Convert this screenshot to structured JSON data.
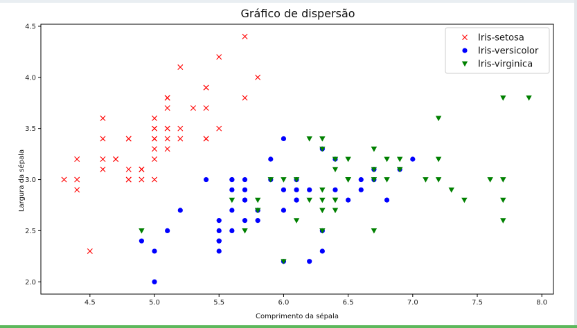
{
  "chart_data": {
    "type": "scatter",
    "title": "Gráfico de dispersão",
    "xlabel": "Comprimento da sépala",
    "ylabel": "Largura da sépala",
    "xlim": [
      4.12,
      8.09
    ],
    "ylim": [
      1.88,
      4.52
    ],
    "xticks": [
      "4.5",
      "5.0",
      "5.5",
      "6.0",
      "6.5",
      "7.0",
      "7.5",
      "8.0"
    ],
    "yticks": [
      "2.0",
      "2.5",
      "3.0",
      "3.5",
      "4.0",
      "4.5"
    ],
    "grid": false,
    "legend_position": "top-right",
    "series": [
      {
        "name": "Iris-setosa",
        "marker": "x",
        "color": "#ff0000",
        "x": [
          5.1,
          4.9,
          4.7,
          4.6,
          5.0,
          5.4,
          4.6,
          5.0,
          4.4,
          4.9,
          5.4,
          4.8,
          4.8,
          4.3,
          5.8,
          5.7,
          5.4,
          5.1,
          5.7,
          5.1,
          5.4,
          5.1,
          4.6,
          5.1,
          4.8,
          5.0,
          5.0,
          5.2,
          5.2,
          4.7,
          4.8,
          5.4,
          5.2,
          5.5,
          4.9,
          5.0,
          5.5,
          4.9,
          4.4,
          5.1,
          5.0,
          4.5,
          4.4,
          5.0,
          5.1,
          4.8,
          5.1,
          4.6,
          5.3,
          5.0
        ],
        "y": [
          3.5,
          3.0,
          3.2,
          3.1,
          3.6,
          3.9,
          3.4,
          3.4,
          2.9,
          3.1,
          3.7,
          3.4,
          3.0,
          3.0,
          4.0,
          4.4,
          3.9,
          3.5,
          3.8,
          3.8,
          3.4,
          3.7,
          3.6,
          3.3,
          3.4,
          3.0,
          3.4,
          3.5,
          3.4,
          3.2,
          3.1,
          3.4,
          4.1,
          4.2,
          3.1,
          3.2,
          3.5,
          3.1,
          3.0,
          3.4,
          3.5,
          2.3,
          3.2,
          3.5,
          3.8,
          3.0,
          3.8,
          3.2,
          3.7,
          3.3
        ]
      },
      {
        "name": "Iris-versicolor",
        "marker": "o",
        "color": "#0000ff",
        "x": [
          7.0,
          6.4,
          6.9,
          5.5,
          6.5,
          5.7,
          6.3,
          4.9,
          6.6,
          5.2,
          5.0,
          5.9,
          6.0,
          6.1,
          5.6,
          6.7,
          5.6,
          5.8,
          6.2,
          5.6,
          5.9,
          6.1,
          6.3,
          6.1,
          6.4,
          6.6,
          6.8,
          6.7,
          6.0,
          5.7,
          5.5,
          5.5,
          5.8,
          6.0,
          5.4,
          6.0,
          6.7,
          6.3,
          5.6,
          5.5,
          5.5,
          6.1,
          5.8,
          5.0,
          5.6,
          5.7,
          5.7,
          6.2,
          5.1,
          5.7
        ],
        "y": [
          3.2,
          3.2,
          3.1,
          2.3,
          2.8,
          2.8,
          3.3,
          2.4,
          2.9,
          2.7,
          2.0,
          3.0,
          2.2,
          2.9,
          2.9,
          3.1,
          3.0,
          2.7,
          2.2,
          2.5,
          3.2,
          2.8,
          2.5,
          2.8,
          2.9,
          3.0,
          2.8,
          3.0,
          2.9,
          2.6,
          2.4,
          2.4,
          2.7,
          2.7,
          3.0,
          3.4,
          3.1,
          2.3,
          3.0,
          2.5,
          2.6,
          3.0,
          2.6,
          2.3,
          2.7,
          3.0,
          2.9,
          2.9,
          2.5,
          2.8
        ]
      },
      {
        "name": "Iris-virginica",
        "marker": "v",
        "color": "#008000",
        "x": [
          6.3,
          5.8,
          7.1,
          6.3,
          6.5,
          7.6,
          4.9,
          7.3,
          6.7,
          7.2,
          6.5,
          6.4,
          6.8,
          5.7,
          5.8,
          6.4,
          6.5,
          7.7,
          7.7,
          6.0,
          6.9,
          5.6,
          7.7,
          6.3,
          6.7,
          7.2,
          6.2,
          6.1,
          6.4,
          7.2,
          7.4,
          7.9,
          6.4,
          6.3,
          6.1,
          7.7,
          6.3,
          6.4,
          6.0,
          6.9,
          6.7,
          6.9,
          5.8,
          6.8,
          6.7,
          6.7,
          6.3,
          6.5,
          6.2,
          5.9
        ],
        "y": [
          3.3,
          2.7,
          3.0,
          2.9,
          3.0,
          3.0,
          2.5,
          2.9,
          2.5,
          3.6,
          3.2,
          2.7,
          3.0,
          2.5,
          2.8,
          3.2,
          3.0,
          3.8,
          2.6,
          2.2,
          3.2,
          2.8,
          2.8,
          2.7,
          3.3,
          3.2,
          2.8,
          3.0,
          2.8,
          3.0,
          2.8,
          3.8,
          2.8,
          2.8,
          2.6,
          3.0,
          3.4,
          3.1,
          3.0,
          3.1,
          3.1,
          3.1,
          2.7,
          3.2,
          3.3,
          3.0,
          2.5,
          3.0,
          3.4,
          3.0
        ]
      }
    ]
  }
}
